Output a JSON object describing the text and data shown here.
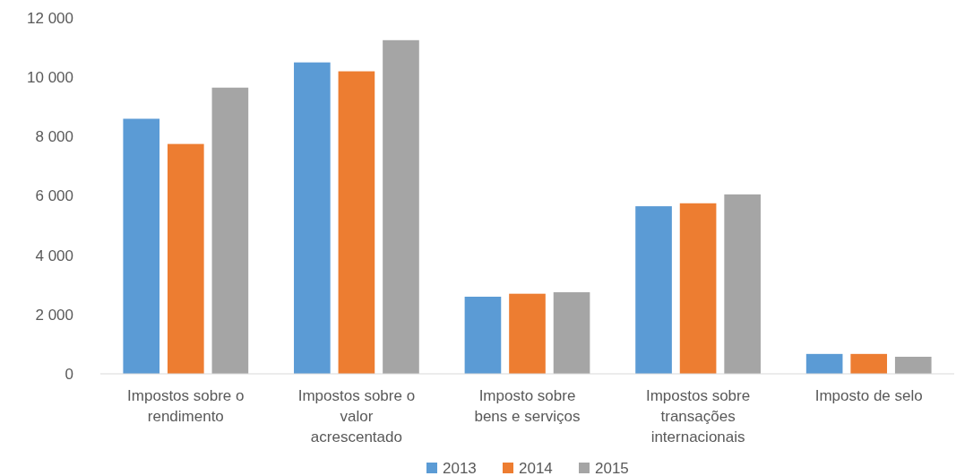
{
  "chart_data": {
    "type": "bar",
    "categories": [
      "Impostos sobre o rendimento",
      "Impostos sobre o valor acrescentado",
      "Imposto sobre bens e serviços",
      "Impostos sobre transações internacionais",
      "Imposto de selo"
    ],
    "series": [
      {
        "name": "2013",
        "color": "#5b9bd5",
        "values": [
          8600,
          10500,
          2600,
          5650,
          670
        ]
      },
      {
        "name": "2014",
        "color": "#ed7d31",
        "values": [
          7750,
          10200,
          2700,
          5750,
          670
        ]
      },
      {
        "name": "2015",
        "color": "#a5a5a5",
        "values": [
          9650,
          11250,
          2750,
          6050,
          575
        ]
      }
    ],
    "ylim": [
      0,
      12000
    ],
    "yticks": [
      {
        "value": 0,
        "label": "0"
      },
      {
        "value": 2000,
        "label": "2 000"
      },
      {
        "value": 4000,
        "label": "4 000"
      },
      {
        "value": 6000,
        "label": "6 000"
      },
      {
        "value": 8000,
        "label": "8 000"
      },
      {
        "value": 10000,
        "label": "10 000"
      },
      {
        "value": 12000,
        "label": "12 000"
      }
    ],
    "grid": false,
    "legend": "bottom"
  }
}
